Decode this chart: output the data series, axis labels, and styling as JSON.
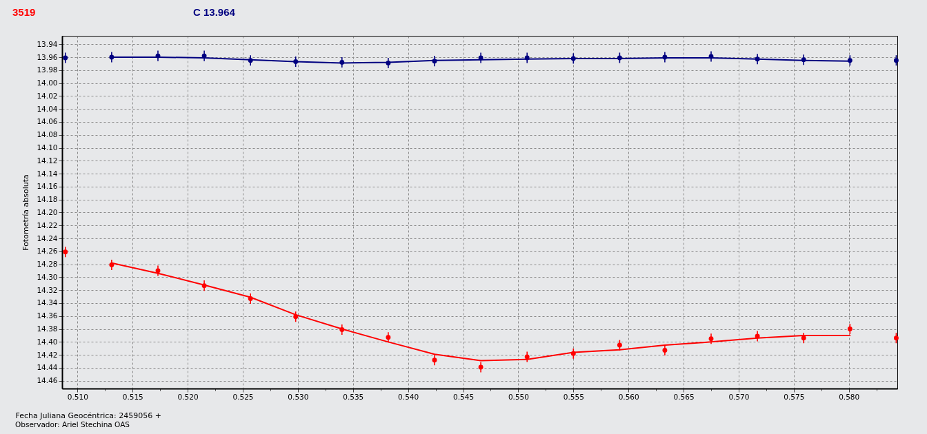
{
  "chart_data": {
    "type": "scatter",
    "ylabel": "Fotometría absoluta",
    "xlabel": "Fecha Juliana Geocéntrica: 2459056 +",
    "annotations": [
      "Observador: Ariel Stechina OAS"
    ],
    "xlim": [
      0.5086,
      0.5844
    ],
    "xticks": [
      {
        "value": 0.51,
        "label": "0.510"
      },
      {
        "value": 0.5125,
        "label": null
      },
      0.515,
      {
        "value": 0.5175,
        "label": null
      },
      {
        "value": 0.52,
        "label": "0.520"
      },
      {
        "value": 0.5225,
        "label": null
      },
      0.525,
      {
        "value": 0.5275,
        "label": null
      },
      {
        "value": 0.53,
        "label": "0.530"
      },
      {
        "value": 0.5325,
        "label": null
      },
      0.535,
      {
        "value": 0.5375,
        "label": null
      },
      {
        "value": 0.54,
        "label": "0.540"
      },
      {
        "value": 0.5425,
        "label": null
      },
      0.545,
      {
        "value": 0.5475,
        "label": null
      },
      {
        "value": 0.55,
        "label": "0.550"
      },
      {
        "value": 0.5525,
        "label": null
      },
      0.555,
      {
        "value": 0.5575,
        "label": null
      },
      {
        "value": 0.56,
        "label": "0.560"
      },
      {
        "value": 0.5625,
        "label": null
      },
      0.565,
      {
        "value": 0.5675,
        "label": null
      },
      {
        "value": 0.57,
        "label": "0.570"
      },
      {
        "value": 0.5725,
        "label": null
      },
      0.575,
      {
        "value": 0.5775,
        "label": null
      },
      {
        "value": 0.58,
        "label": "0.580"
      },
      {
        "value": 0.5825,
        "label": null
      }
    ],
    "ylim": [
      14.472,
      13.927
    ],
    "yticks": [
      13.94,
      13.96,
      13.98,
      {
        "value": 14,
        "label": "14.00"
      },
      14.02,
      14.04,
      14.06,
      14.08,
      {
        "value": 14.1,
        "label": "14.10"
      },
      14.12,
      14.14,
      14.16,
      14.18,
      {
        "value": 14.2,
        "label": "14.20"
      },
      14.22,
      14.24,
      14.26,
      14.28,
      {
        "value": 14.3,
        "label": "14.30"
      },
      14.32,
      14.34,
      14.36,
      14.38,
      {
        "value": 14.4,
        "label": "14.40"
      },
      14.42,
      14.44,
      14.46
    ],
    "grid": true,
    "legend": "top left",
    "marker": "circle",
    "series": [
      {
        "name": "3519",
        "color": "#ff0000",
        "x": [
          0.5089,
          0.5131,
          0.5173,
          0.5215,
          0.5257,
          0.5298,
          0.534,
          0.5382,
          0.5424,
          0.5466,
          0.5508,
          0.555,
          0.5592,
          0.5633,
          0.5675,
          0.5717,
          0.5759,
          0.5801,
          0.5843
        ],
        "values": [
          14.261,
          14.281,
          14.29,
          14.313,
          14.333,
          14.361,
          14.381,
          14.393,
          14.428,
          14.439,
          14.423,
          14.418,
          14.405,
          14.413,
          14.395,
          14.391,
          14.394,
          14.38,
          14.394
        ],
        "errors": [
          0.008,
          0.008,
          0.008,
          0.008,
          0.008,
          0.008,
          0.008,
          0.008,
          0.008,
          0.008,
          0.008,
          0.008,
          0.008,
          0.008,
          0.008,
          0.008,
          0.008,
          0.008,
          0.008
        ]
      },
      {
        "type": "line",
        "marker": "none",
        "color": "#ff0000",
        "x": [
          0.5131,
          0.5173,
          0.5215,
          0.5257,
          0.5298,
          0.534,
          0.5382,
          0.5424,
          0.5466,
          0.5508,
          0.555,
          0.5592,
          0.5633,
          0.5675,
          0.5717,
          0.5759,
          0.5801
        ],
        "values": [
          14.278,
          14.294,
          14.312,
          14.331,
          14.358,
          14.38,
          14.4,
          14.419,
          14.429,
          14.427,
          14.416,
          14.412,
          14.405,
          14.4,
          14.394,
          14.39,
          14.39
        ]
      },
      {
        "name": "C 13.964",
        "color": "#000080",
        "x": [
          0.5089,
          0.5131,
          0.5173,
          0.5215,
          0.5257,
          0.5298,
          0.534,
          0.5382,
          0.5424,
          0.5466,
          0.5508,
          0.555,
          0.5592,
          0.5633,
          0.5675,
          0.5717,
          0.5759,
          0.5801,
          0.5843
        ],
        "values": [
          13.961,
          13.96,
          13.958,
          13.958,
          13.965,
          13.967,
          13.968,
          13.969,
          13.966,
          13.961,
          13.961,
          13.962,
          13.961,
          13.96,
          13.959,
          13.963,
          13.964,
          13.965,
          13.965
        ],
        "errors": [
          0.008,
          0.008,
          0.008,
          0.008,
          0.008,
          0.008,
          0.008,
          0.008,
          0.008,
          0.008,
          0.008,
          0.008,
          0.008,
          0.008,
          0.008,
          0.008,
          0.008,
          0.008,
          0.008
        ]
      },
      {
        "type": "line",
        "marker": "none",
        "color": "#000080",
        "x": [
          0.5131,
          0.5173,
          0.5215,
          0.5257,
          0.5298,
          0.534,
          0.5382,
          0.5424,
          0.5466,
          0.5508,
          0.555,
          0.5592,
          0.5633,
          0.5675,
          0.5717,
          0.5759,
          0.5801
        ],
        "values": [
          13.96,
          13.96,
          13.961,
          13.964,
          13.967,
          13.969,
          13.968,
          13.965,
          13.964,
          13.963,
          13.962,
          13.962,
          13.961,
          13.961,
          13.963,
          13.965,
          13.966
        ]
      }
    ]
  }
}
